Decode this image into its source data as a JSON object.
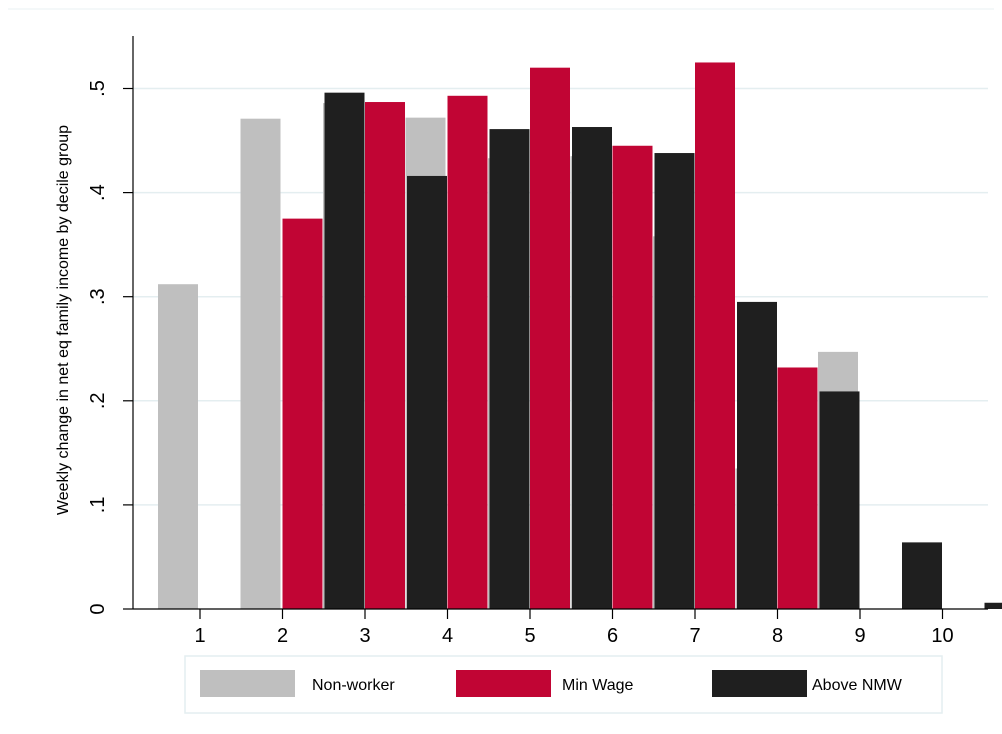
{
  "chart_data": {
    "type": "bar",
    "ylabel": "Weekly change in net eq family income by decile group",
    "categories": [
      "1",
      "2",
      "3",
      "4",
      "5",
      "6",
      "7",
      "8",
      "9",
      "10"
    ],
    "ylim": [
      0,
      0.55
    ],
    "yticks": [
      {
        "value": 0,
        "label": "0"
      },
      {
        "value": 0.1,
        "label": ".1"
      },
      {
        "value": 0.2,
        "label": ".2"
      },
      {
        "value": 0.3,
        "label": ".3"
      },
      {
        "value": 0.4,
        "label": ".4"
      },
      {
        "value": 0.5,
        "label": ".5"
      }
    ],
    "grid": true,
    "legend_position": "bottom",
    "series": [
      {
        "name": "Non-worker",
        "color": "#bfbfbf",
        "values": [
          0.312,
          0.471,
          0.486,
          0.472,
          0.433,
          0.435,
          0.358,
          0.135,
          0.247,
          null
        ]
      },
      {
        "name": "Min Wage",
        "color": "#c10534",
        "values": [
          null,
          0.375,
          0.487,
          0.493,
          0.52,
          0.445,
          0.525,
          0.232,
          null,
          null
        ]
      },
      {
        "name": "Above NMW",
        "color": "#1f1f1f",
        "values": [
          null,
          0.496,
          0.416,
          0.461,
          0.463,
          0.438,
          0.295,
          0.209,
          0.064,
          0.006
        ]
      }
    ]
  }
}
